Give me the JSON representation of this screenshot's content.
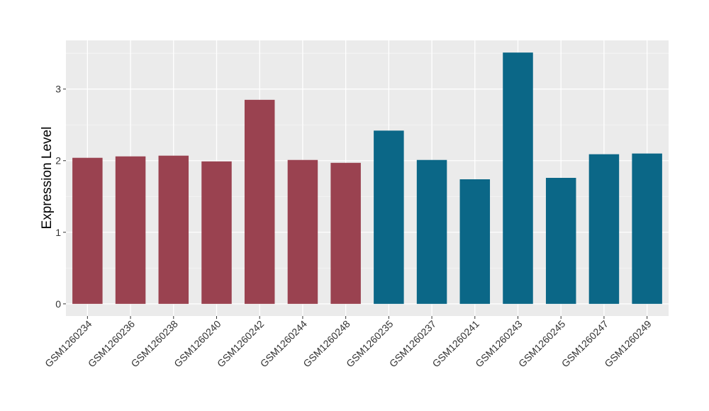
{
  "chart_data": {
    "type": "bar",
    "title": "",
    "xlabel": "",
    "ylabel": "Expression Level",
    "ylim": [
      -0.17,
      3.68
    ],
    "yticks": [
      0,
      1,
      2,
      3
    ],
    "grid": true,
    "categories": [
      "GSM1260234",
      "GSM1260236",
      "GSM1260238",
      "GSM1260240",
      "GSM1260242",
      "GSM1260244",
      "GSM1260248",
      "GSM1260235",
      "GSM1260237",
      "GSM1260241",
      "GSM1260243",
      "GSM1260245",
      "GSM1260247",
      "GSM1260249"
    ],
    "values": [
      2.04,
      2.06,
      2.07,
      1.99,
      2.85,
      2.01,
      1.97,
      2.42,
      2.01,
      1.74,
      3.51,
      1.76,
      2.09,
      2.1
    ],
    "groups": [
      0,
      0,
      0,
      0,
      0,
      0,
      0,
      1,
      1,
      1,
      1,
      1,
      1,
      1
    ],
    "group_colors": [
      "#9a4250",
      "#0b6787"
    ]
  }
}
